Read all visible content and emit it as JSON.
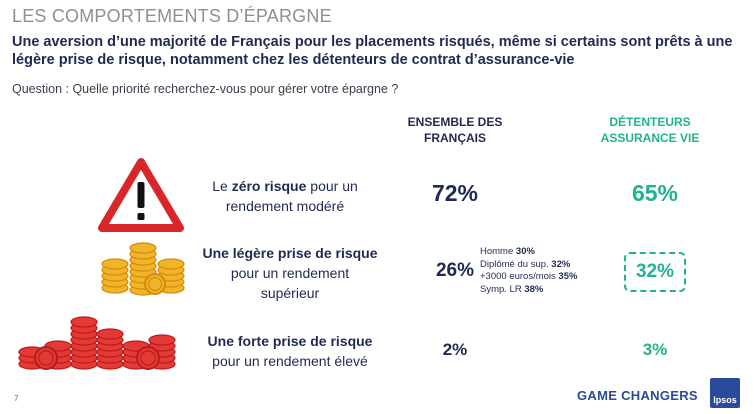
{
  "header": {
    "kicker": "LES COMPORTEMENTS D’ÉPARGNE",
    "headline": "Une aversion d’une majorité de Français pour les placements risqués, même si certains sont prêts à une légère prise de risque, notamment chez les détenteurs de contrat d’assurance-vie",
    "question": "Question : Quelle priorité recherchez-vous pour gérer votre épargne ?"
  },
  "columns": {
    "all_line1": "ENSEMBLE DES",
    "all_line2": "FRANÇAIS",
    "ins_line1": "DÉTENTEURS",
    "ins_line2": "ASSURANCE VIE"
  },
  "rows": [
    {
      "pre": "Le ",
      "bold": "zéro risque",
      "post": " pour un",
      "line2": "rendement modéré",
      "icon": "warning-triangle-icon"
    },
    {
      "pre": "",
      "bold": "Une légère prise de risque",
      "post": "",
      "line2": "pour un rendement",
      "line3": "supérieur",
      "icon": "gold-coins-icon"
    },
    {
      "pre": "",
      "bold": "Une forte prise de risque",
      "post": "",
      "line2": "pour un rendement élevé",
      "icon": "red-coins-icon"
    }
  ],
  "details": [
    {
      "label": "Homme ",
      "value": "30%"
    },
    {
      "label": "Diplômé du sup. ",
      "value": "32%"
    },
    {
      "label": "+3000 euros/mois ",
      "value": "35%"
    },
    {
      "label": "Symp. LR ",
      "value": "38%"
    }
  ],
  "chart_data": {
    "type": "table",
    "categories": [
      "Le zéro risque pour un rendement modéré",
      "Une légère prise de risque pour un rendement supérieur",
      "Une forte prise de risque pour un rendement élevé"
    ],
    "series": [
      {
        "name": "ENSEMBLE DES FRANÇAIS",
        "values": [
          "72%",
          "26%",
          "2%"
        ]
      },
      {
        "name": "DÉTENTEURS ASSURANCE VIE",
        "values": [
          "65%",
          "32%",
          "3%"
        ]
      }
    ],
    "highlight": {
      "series": "DÉTENTEURS ASSURANCE VIE",
      "category_index": 1,
      "style": "dashed box"
    }
  },
  "footer": {
    "page_number": "7",
    "tagline": "GAME CHANGERS",
    "logo_text": "Ipsos"
  },
  "colors": {
    "navy": "#1f2a52",
    "green": "#21b38e",
    "warning_red": "#d9262a",
    "gold": "#f0b429",
    "coin_red": "#e53935",
    "brand_blue": "#2a4a9a"
  }
}
